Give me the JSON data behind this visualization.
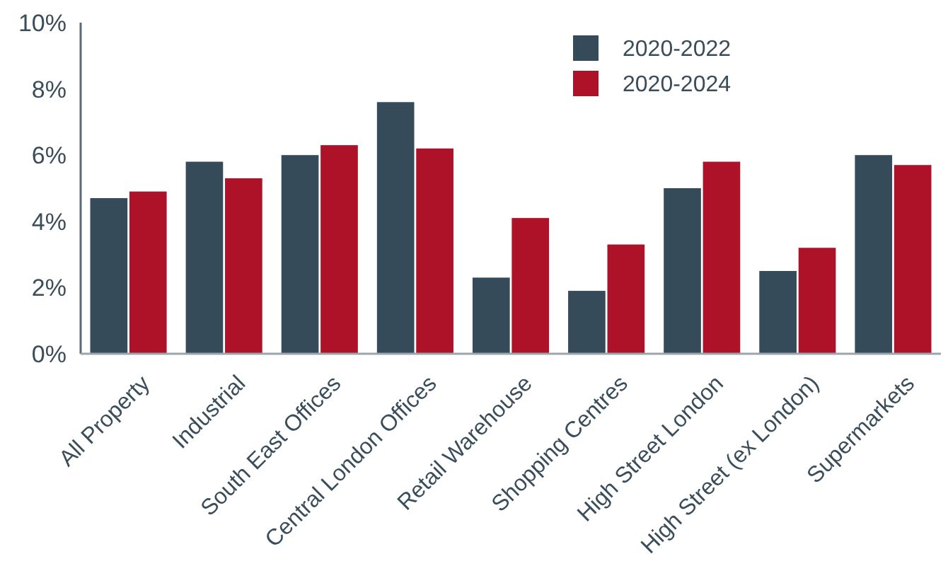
{
  "chart_data": {
    "type": "bar",
    "categories": [
      "All Property",
      "Industrial",
      "South East Offices",
      "Central London Offices",
      "Retail Warehouse",
      "Shopping Centres",
      "High Street London",
      "High Street (ex London)",
      "Supermarkets"
    ],
    "series": [
      {
        "name": "2020-2022",
        "color": "#354b59",
        "values": [
          4.7,
          5.8,
          6.0,
          7.6,
          2.3,
          1.9,
          5.0,
          2.5,
          6.0
        ]
      },
      {
        "name": "2020-2024",
        "color": "#ae1228",
        "values": [
          4.9,
          5.3,
          6.3,
          6.2,
          4.1,
          3.3,
          5.8,
          3.2,
          5.7
        ]
      }
    ],
    "ylim": [
      0,
      10
    ],
    "yticks": [
      {
        "value": 0,
        "label": "0%"
      },
      {
        "value": 2,
        "label": "2%"
      },
      {
        "value": 4,
        "label": "4%"
      },
      {
        "value": 6,
        "label": "6%"
      },
      {
        "value": 8,
        "label": "8%"
      },
      {
        "value": 10,
        "label": "10%"
      }
    ],
    "grid": false,
    "legend": "top right"
  }
}
